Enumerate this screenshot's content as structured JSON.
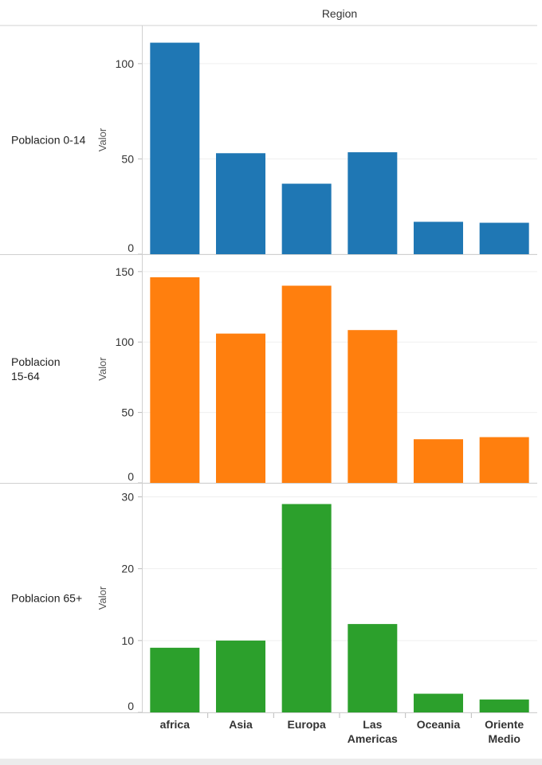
{
  "chart_data": {
    "type": "bar",
    "column_header": "Region",
    "categories": [
      "africa",
      "Asia",
      "Europa",
      "Las Americas",
      "Oceania",
      "Oriente Medio"
    ],
    "category_lines": [
      [
        "africa"
      ],
      [
        "Asia"
      ],
      [
        "Europa"
      ],
      [
        "Las",
        "Americas"
      ],
      [
        "Oceania"
      ],
      [
        "Oriente",
        "Medio"
      ]
    ],
    "panels": [
      {
        "label": "Poblacion 0-14",
        "label_lines": [
          "Poblacion 0-14"
        ],
        "ylabel": "Valor",
        "color": "#1f77b4",
        "ylim": [
          0,
          115
        ],
        "ticks": [
          0,
          50,
          100
        ],
        "values": [
          111,
          53,
          37,
          53.5,
          17,
          16.5
        ]
      },
      {
        "label": "Poblacion 15-64",
        "label_lines": [
          "Poblacion",
          "15-64"
        ],
        "ylabel": "Valor",
        "color": "#ff7f0e",
        "ylim": [
          0,
          155
        ],
        "ticks": [
          0,
          50,
          100,
          150
        ],
        "values": [
          146,
          106,
          140,
          108.5,
          31,
          32.5
        ]
      },
      {
        "label": "Poblacion 65+",
        "label_lines": [
          "Poblacion 65+"
        ],
        "ylabel": "Valor",
        "color": "#2ca02c",
        "ylim": [
          0,
          30.5
        ],
        "ticks": [
          0,
          10,
          20,
          30
        ],
        "values": [
          9,
          10,
          29,
          12.3,
          2.6,
          1.8
        ]
      }
    ]
  }
}
